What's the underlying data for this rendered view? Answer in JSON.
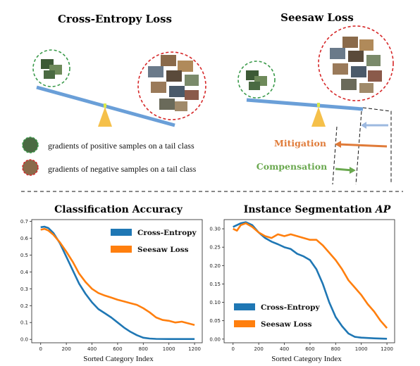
{
  "top": {
    "left_title": "Cross-Entropy Loss",
    "right_title": "Seesaw Loss",
    "legend_positive": "gradients of positive samples on a tail class",
    "legend_negative": "gradients of negative samples on a tail class",
    "mitigation_label": "Mitigation",
    "compensation_label": "Compensation",
    "colors": {
      "positive": "#3a9a4a",
      "negative": "#d62728",
      "beam": "#6a9fd8",
      "pivot": "#f5c04a",
      "mitigation": "#e07b39",
      "compensation": "#6aa84f",
      "arrow_blue": "#9db9e0"
    }
  },
  "chart_data": [
    {
      "type": "line",
      "title": "Classification Accuracy",
      "xlabel": "Sorted Category Index",
      "ylabel": "",
      "xlim": [
        -70,
        1260
      ],
      "ylim": [
        -0.02,
        0.71
      ],
      "xticks": [
        0,
        200,
        400,
        600,
        800,
        1000,
        1200
      ],
      "yticks": [
        0.0,
        0.1,
        0.2,
        0.3,
        0.4,
        0.5,
        0.6,
        0.7
      ],
      "ytick_labels": [
        "0.0",
        "0.1",
        "0.2",
        "0.3",
        "0.4",
        "0.5",
        "0.6",
        "0.7"
      ],
      "legend_position": "top-right",
      "series": [
        {
          "name": "Cross-Entropy",
          "color": "#1f77b4",
          "x": [
            0,
            30,
            60,
            100,
            150,
            200,
            250,
            300,
            350,
            400,
            450,
            500,
            550,
            600,
            650,
            700,
            750,
            800,
            850,
            900,
            1000,
            1100,
            1200
          ],
          "y": [
            0.665,
            0.668,
            0.66,
            0.63,
            0.57,
            0.49,
            0.41,
            0.33,
            0.27,
            0.22,
            0.18,
            0.155,
            0.13,
            0.1,
            0.07,
            0.045,
            0.025,
            0.01,
            0.005,
            0.003,
            0.002,
            0.002,
            0.002
          ]
        },
        {
          "name": "Seesaw Loss",
          "color": "#ff7f0e",
          "x": [
            0,
            30,
            60,
            100,
            150,
            200,
            250,
            300,
            350,
            400,
            450,
            500,
            550,
            600,
            650,
            700,
            750,
            800,
            850,
            900,
            950,
            1000,
            1050,
            1100,
            1150,
            1200
          ],
          "y": [
            0.65,
            0.655,
            0.645,
            0.62,
            0.575,
            0.52,
            0.46,
            0.39,
            0.34,
            0.3,
            0.275,
            0.26,
            0.248,
            0.235,
            0.225,
            0.215,
            0.205,
            0.185,
            0.16,
            0.13,
            0.115,
            0.11,
            0.1,
            0.105,
            0.095,
            0.085
          ]
        }
      ]
    },
    {
      "type": "line",
      "title": "Instance Segmentation ",
      "title_italic": "AP",
      "xlabel": "Sorted Category Index",
      "ylabel": "",
      "xlim": [
        -70,
        1260
      ],
      "ylim": [
        -0.01,
        0.325
      ],
      "xticks": [
        0,
        200,
        400,
        600,
        800,
        1000,
        1200
      ],
      "yticks": [
        0.0,
        0.05,
        0.1,
        0.15,
        0.2,
        0.25,
        0.3
      ],
      "ytick_labels": [
        "0.00",
        "0.05",
        "0.10",
        "0.15",
        "0.20",
        "0.25",
        "0.30"
      ],
      "legend_position": "bottom-left",
      "series": [
        {
          "name": "Cross-Entropy",
          "color": "#1f77b4",
          "x": [
            0,
            30,
            60,
            100,
            150,
            200,
            250,
            300,
            350,
            400,
            450,
            500,
            550,
            600,
            650,
            700,
            750,
            800,
            850,
            900,
            950,
            1000,
            1100,
            1200
          ],
          "y": [
            0.305,
            0.31,
            0.315,
            0.318,
            0.31,
            0.29,
            0.275,
            0.265,
            0.258,
            0.25,
            0.245,
            0.232,
            0.225,
            0.215,
            0.19,
            0.15,
            0.1,
            0.06,
            0.035,
            0.015,
            0.006,
            0.004,
            0.002,
            0.001
          ]
        },
        {
          "name": "Seesaw Loss",
          "color": "#ff7f0e",
          "x": [
            0,
            30,
            60,
            100,
            150,
            200,
            250,
            300,
            350,
            400,
            450,
            500,
            550,
            600,
            650,
            700,
            750,
            800,
            850,
            900,
            950,
            1000,
            1050,
            1100,
            1150,
            1200
          ],
          "y": [
            0.3,
            0.295,
            0.31,
            0.315,
            0.305,
            0.29,
            0.28,
            0.275,
            0.285,
            0.28,
            0.285,
            0.28,
            0.275,
            0.27,
            0.27,
            0.255,
            0.235,
            0.215,
            0.19,
            0.16,
            0.14,
            0.12,
            0.095,
            0.075,
            0.05,
            0.03
          ]
        }
      ]
    }
  ]
}
